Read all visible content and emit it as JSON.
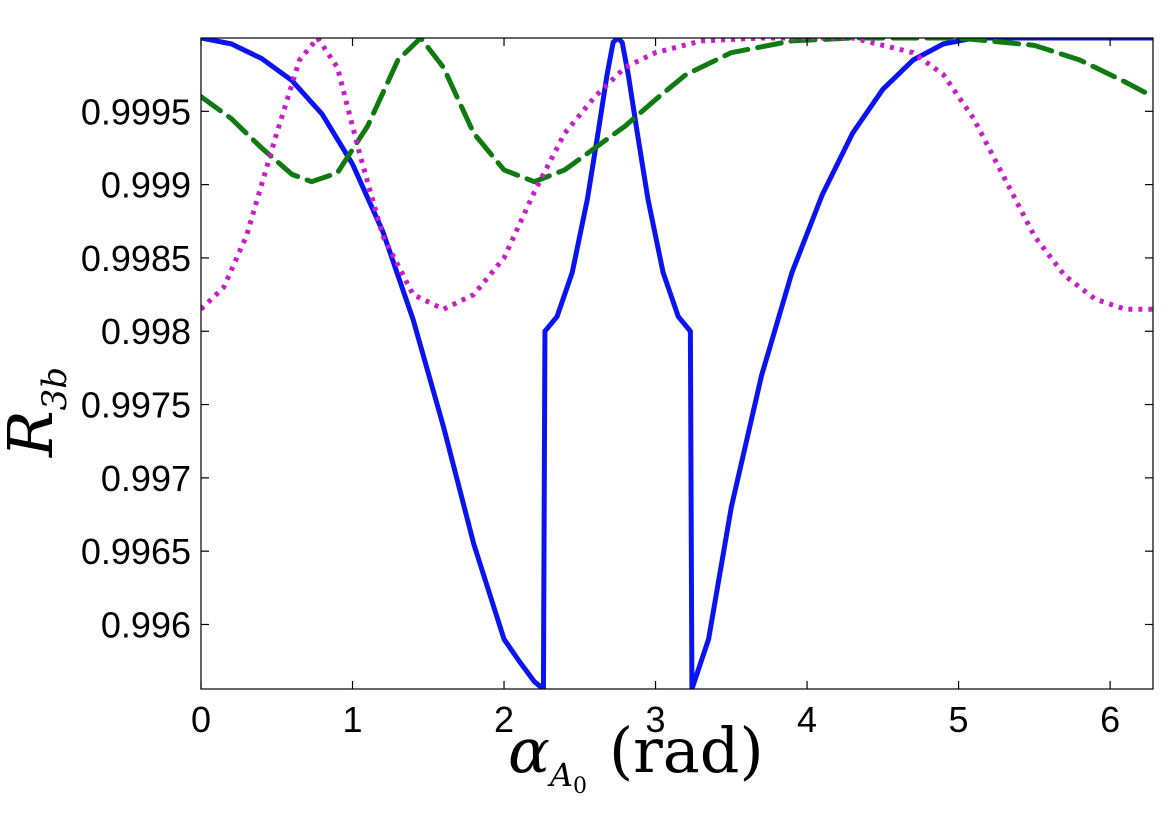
{
  "chart_data": {
    "type": "line",
    "title": "",
    "xlabel": {
      "symbol": "α",
      "subscript_main": "A",
      "subscript_sub": "0",
      "unit": "(rad)"
    },
    "ylabel": {
      "symbol": "R",
      "subscript": "3b"
    },
    "xlim": [
      0,
      6.2832
    ],
    "ylim": [
      0.99556,
      1.0
    ],
    "xticks": [
      0,
      1,
      2,
      3,
      4,
      5,
      6
    ],
    "xtick_labels": [
      "0",
      "1",
      "2",
      "3",
      "4",
      "5",
      "6"
    ],
    "yticks": [
      0.996,
      0.9965,
      0.997,
      0.9975,
      0.998,
      0.9985,
      0.999,
      0.9995
    ],
    "ytick_labels": [
      "0.996",
      "0.9965",
      "0.997",
      "0.9975",
      "0.998",
      "0.9985",
      "0.999",
      "0.9995"
    ],
    "grid": false,
    "legend": "none",
    "series": [
      {
        "style": "solid",
        "color": "#0a14f0",
        "points": [
          [
            0,
            1.0
          ],
          [
            0.2,
            0.99996
          ],
          [
            0.4,
            0.99986
          ],
          [
            0.6,
            0.99971
          ],
          [
            0.8,
            0.99948
          ],
          [
            1.0,
            0.99914
          ],
          [
            1.2,
            0.99868
          ],
          [
            1.4,
            0.99808
          ],
          [
            1.6,
            0.99735
          ],
          [
            1.8,
            0.99655
          ],
          [
            2.0,
            0.9959
          ],
          [
            2.1,
            0.99575
          ],
          [
            2.2,
            0.99561
          ],
          [
            2.26,
            0.99556
          ],
          [
            2.27,
            0.998
          ],
          [
            2.35,
            0.9981
          ],
          [
            2.45,
            0.9984
          ],
          [
            2.55,
            0.9989
          ],
          [
            2.62,
            0.99935
          ],
          [
            2.68,
            0.99975
          ],
          [
            2.72,
            0.99997
          ],
          [
            2.75,
            1.0
          ],
          [
            2.78,
            0.99997
          ],
          [
            2.82,
            0.99975
          ],
          [
            2.88,
            0.99935
          ],
          [
            2.95,
            0.9989
          ],
          [
            3.05,
            0.9984
          ],
          [
            3.15,
            0.9981
          ],
          [
            3.23,
            0.998
          ],
          [
            3.24,
            0.99556
          ],
          [
            3.35,
            0.9959
          ],
          [
            3.5,
            0.9968
          ],
          [
            3.7,
            0.9977
          ],
          [
            3.9,
            0.9984
          ],
          [
            4.1,
            0.99893
          ],
          [
            4.3,
            0.99935
          ],
          [
            4.5,
            0.99965
          ],
          [
            4.7,
            0.99985
          ],
          [
            4.9,
            0.99996
          ],
          [
            5.1,
            1.0
          ],
          [
            5.4,
            1.0
          ],
          [
            5.8,
            1.0
          ],
          [
            6.2832,
            1.0
          ]
        ]
      },
      {
        "style": "dashed",
        "color": "#0f7a0f",
        "points": [
          [
            0,
            0.9996
          ],
          [
            0.2,
            0.99945
          ],
          [
            0.4,
            0.99925
          ],
          [
            0.6,
            0.99907
          ],
          [
            0.73,
            0.99902
          ],
          [
            0.9,
            0.99908
          ],
          [
            1.1,
            0.9994
          ],
          [
            1.3,
            0.99985
          ],
          [
            1.45,
            1.0
          ],
          [
            1.6,
            0.9998
          ],
          [
            1.8,
            0.99935
          ],
          [
            2.0,
            0.9991
          ],
          [
            2.2,
            0.99902
          ],
          [
            2.4,
            0.9991
          ],
          [
            2.6,
            0.99925
          ],
          [
            2.8,
            0.9994
          ],
          [
            3.0,
            0.99958
          ],
          [
            3.2,
            0.99975
          ],
          [
            3.5,
            0.9999
          ],
          [
            3.9,
            0.99998
          ],
          [
            4.3,
            1.0
          ],
          [
            5.0,
            1.0
          ],
          [
            5.5,
            0.99995
          ],
          [
            5.8,
            0.99985
          ],
          [
            6.1,
            0.9997
          ],
          [
            6.2832,
            0.9996
          ]
        ]
      },
      {
        "style": "dotted",
        "color": "#c81ec8",
        "points": [
          [
            0,
            0.99815
          ],
          [
            0.15,
            0.9983
          ],
          [
            0.3,
            0.99865
          ],
          [
            0.5,
            0.99935
          ],
          [
            0.65,
            0.99985
          ],
          [
            0.77,
            1.0
          ],
          [
            0.9,
            0.9998
          ],
          [
            1.05,
            0.9992
          ],
          [
            1.2,
            0.99865
          ],
          [
            1.4,
            0.99825
          ],
          [
            1.6,
            0.99815
          ],
          [
            1.8,
            0.99825
          ],
          [
            2.0,
            0.9985
          ],
          [
            2.2,
            0.99895
          ],
          [
            2.4,
            0.99935
          ],
          [
            2.6,
            0.9996
          ],
          [
            2.8,
            0.9998
          ],
          [
            3.0,
            0.9999
          ],
          [
            3.3,
            0.99998
          ],
          [
            3.7,
            1.0
          ],
          [
            4.3,
            1.0
          ],
          [
            4.7,
            0.9999
          ],
          [
            4.9,
            0.99975
          ],
          [
            5.1,
            0.99945
          ],
          [
            5.3,
            0.99905
          ],
          [
            5.5,
            0.99865
          ],
          [
            5.7,
            0.99838
          ],
          [
            5.9,
            0.99822
          ],
          [
            6.1,
            0.99815
          ],
          [
            6.2832,
            0.99815
          ]
        ]
      }
    ]
  }
}
